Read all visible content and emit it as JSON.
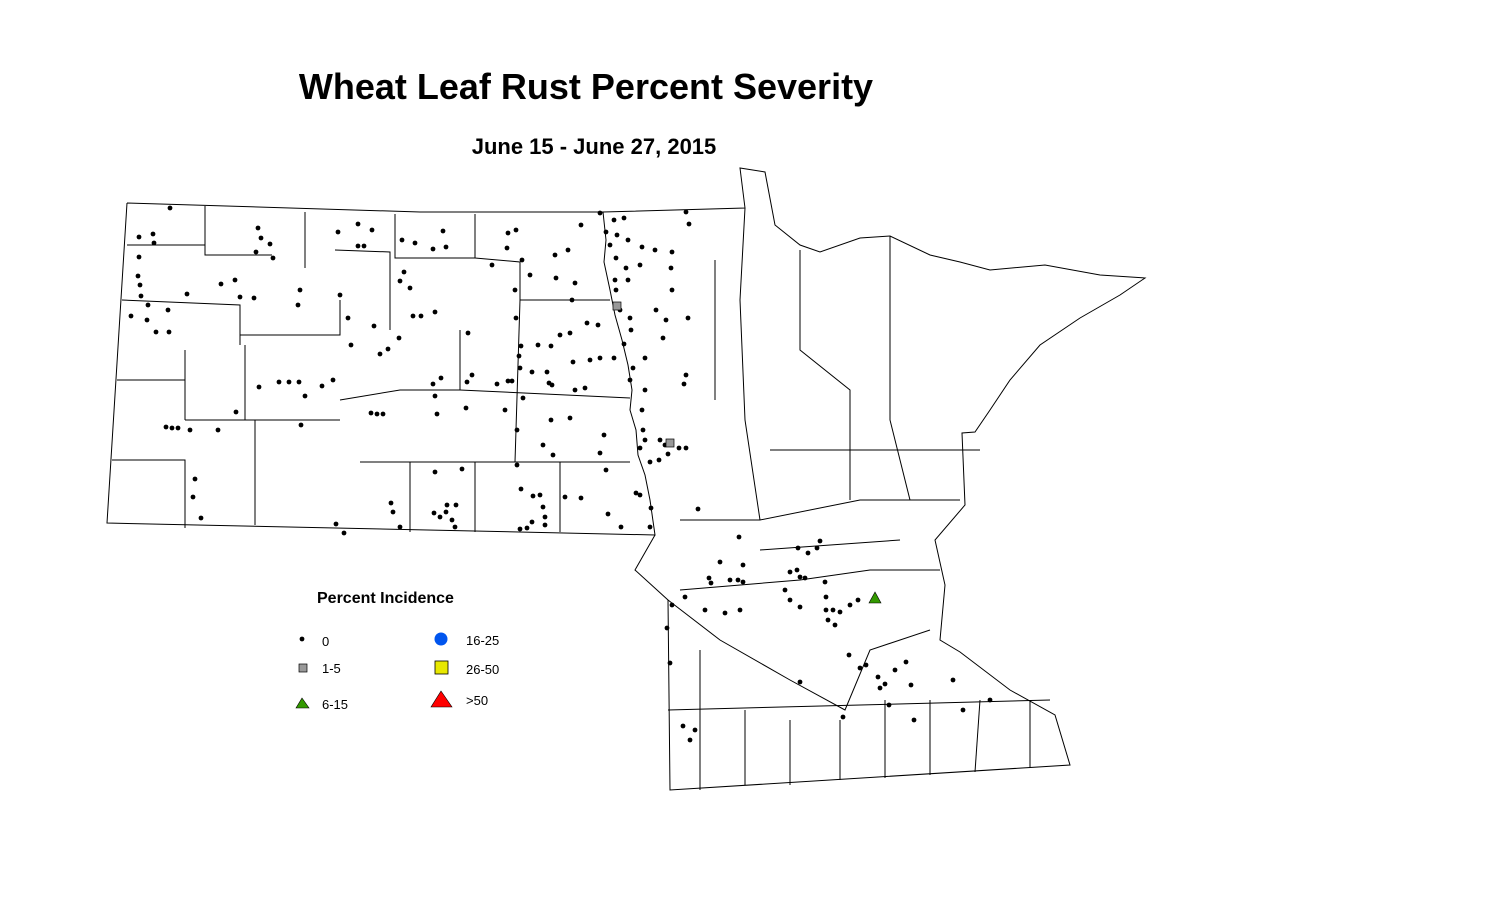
{
  "title": "Wheat Leaf Rust Percent Severity",
  "subtitle": "June 15 - June 27, 2015",
  "legend": {
    "title": "Percent Incidence",
    "items": [
      {
        "label": "0",
        "symbol": "dot",
        "color": "#000000"
      },
      {
        "label": "1-5",
        "symbol": "square",
        "color": "#999999"
      },
      {
        "label": "6-15",
        "symbol": "triangle",
        "color": "#339900"
      },
      {
        "label": "16-25",
        "symbol": "circle",
        "color": "#0055ee"
      },
      {
        "label": "26-50",
        "symbol": "square",
        "color": "#e8e800"
      },
      {
        "label": ">50",
        "symbol": "triangle",
        "color": "#ff0000"
      }
    ]
  }
}
